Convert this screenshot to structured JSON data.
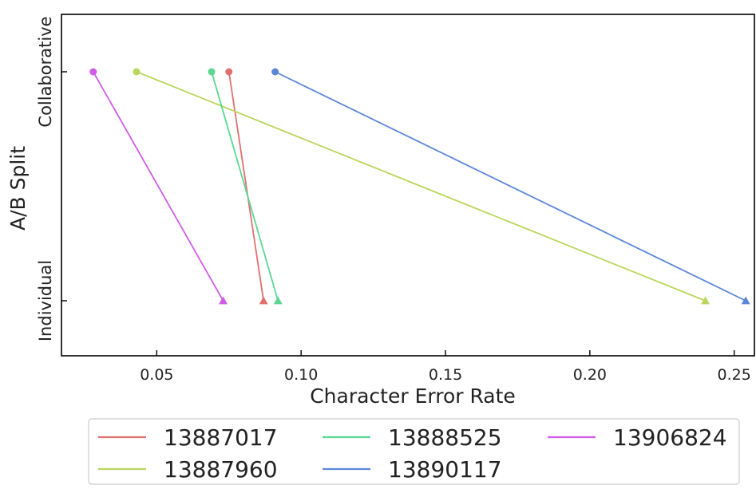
{
  "chart_data": {
    "type": "line",
    "xlabel": "Character Error Rate",
    "ylabel": "A/B Split",
    "categories": [
      "Collaborative",
      "Individual"
    ],
    "xlim": [
      0.017,
      0.257
    ],
    "xticks": [
      0.05,
      0.1,
      0.15,
      0.2,
      0.25
    ],
    "xtick_labels": [
      "0.05",
      "0.10",
      "0.15",
      "0.20",
      "0.25"
    ],
    "grid": false,
    "legend_position": "bottom",
    "markers": {
      "Collaborative": "circle",
      "Individual": "triangle"
    },
    "series": [
      {
        "name": "13887017",
        "color": "#e07070",
        "values": {
          "Collaborative": 0.075,
          "Individual": 0.087
        }
      },
      {
        "name": "13887960",
        "color": "#bad65c",
        "values": {
          "Collaborative": 0.043,
          "Individual": 0.24
        }
      },
      {
        "name": "13888525",
        "color": "#5ad890",
        "values": {
          "Collaborative": 0.069,
          "Individual": 0.092
        }
      },
      {
        "name": "13890117",
        "color": "#5b86d8",
        "values": {
          "Collaborative": 0.091,
          "Individual": 0.254
        }
      },
      {
        "name": "13906824",
        "color": "#d05ce6",
        "values": {
          "Collaborative": 0.028,
          "Individual": 0.073
        }
      }
    ]
  }
}
